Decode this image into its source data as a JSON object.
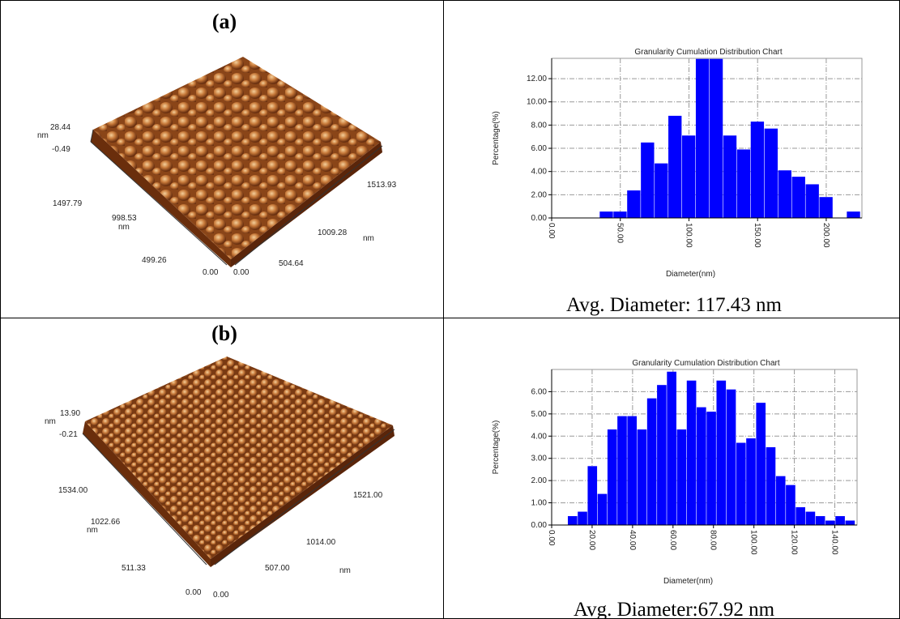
{
  "panels": [
    {
      "label": "(a)",
      "caption": "Avg. Diameter: 117.43 nm",
      "afm": {
        "z_unit": "nm",
        "z_max": "28.44",
        "z_min": "-0.49",
        "y_labels": [
          "1497.79",
          "998.53",
          "499.26",
          "0.00"
        ],
        "y_unit": "nm",
        "x_labels": [
          "1513.93",
          "1009.28",
          "504.64",
          "0.00"
        ],
        "x_unit": "nm"
      }
    },
    {
      "label": "(b)",
      "caption": "Avg. Diameter:67.92 nm",
      "afm": {
        "z_unit": "nm",
        "z_max": "13.90",
        "z_min": "-0.21",
        "y_labels": [
          "1534.00",
          "1022.66",
          "511.33",
          "0.00"
        ],
        "y_unit": "nm",
        "x_labels": [
          "1521.00",
          "1014.00",
          "507.00",
          "0.00"
        ],
        "x_unit": "nm"
      }
    }
  ],
  "chart_data": [
    {
      "type": "histogram",
      "title": "Granularity Cumulation Distribution  Chart",
      "xlabel": "Diameter(nm)",
      "ylabel": "Percentage(%)",
      "color": "#0000ff",
      "grid": true,
      "bins": [
        35,
        45,
        55,
        65,
        75,
        85,
        95,
        105,
        115,
        125,
        135,
        145,
        155,
        165,
        175,
        185,
        195,
        205,
        215,
        225
      ],
      "values": [
        0.55,
        0.55,
        2.37,
        6.5,
        4.7,
        8.8,
        7.1,
        13.7,
        13.7,
        7.1,
        5.9,
        8.3,
        7.7,
        4.1,
        3.55,
        2.9,
        1.8,
        0,
        0.55
      ],
      "xlim": [
        0,
        226
      ],
      "ylim": [
        0,
        13.75
      ],
      "xticks": [
        {
          "value": 0,
          "label": "0.00"
        },
        {
          "value": 50,
          "label": "50.00"
        },
        {
          "value": 100,
          "label": "100.00"
        },
        {
          "value": 150,
          "label": "150.00"
        },
        {
          "value": 200,
          "label": "200.00"
        }
      ],
      "yticks": [
        {
          "value": 0,
          "label": "0.00"
        },
        {
          "value": 2,
          "label": "2.00"
        },
        {
          "value": 4,
          "label": "4.00"
        },
        {
          "value": 6,
          "label": "6.00"
        },
        {
          "value": 8,
          "label": "8.00"
        },
        {
          "value": 10,
          "label": "10.00"
        },
        {
          "value": 12,
          "label": "12.00"
        }
      ]
    },
    {
      "type": "histogram",
      "title": "Granularity Cumulation Distribution  Chart",
      "xlabel": "Diameter(nm)",
      "ylabel": "Percentage(%)",
      "color": "#0000ff",
      "grid": true,
      "bins": [
        8,
        12.9,
        17.8,
        22.7,
        27.6,
        32.5,
        37.4,
        42.3,
        47.2,
        52.1,
        57,
        61.9,
        66.8,
        71.7,
        76.6,
        81.5,
        86.4,
        91.3,
        96.2,
        101.1,
        106,
        110.9,
        115.8,
        120.7,
        125.6,
        130.5,
        135.4,
        140.3,
        145.2,
        150.1
      ],
      "values": [
        0.4,
        0.6,
        2.65,
        1.4,
        4.3,
        4.9,
        4.9,
        4.3,
        5.7,
        6.3,
        6.9,
        4.3,
        6.5,
        5.3,
        5.1,
        6.5,
        6.1,
        3.7,
        3.9,
        5.5,
        3.5,
        2.2,
        1.8,
        0.8,
        0.6,
        0.4,
        0.2,
        0.4,
        0.2
      ],
      "xlim": [
        0,
        151
      ],
      "ylim": [
        0,
        7
      ],
      "xticks": [
        {
          "value": 0,
          "label": "0.00"
        },
        {
          "value": 20,
          "label": "20.00"
        },
        {
          "value": 40,
          "label": "40.00"
        },
        {
          "value": 60,
          "label": "60.00"
        },
        {
          "value": 80,
          "label": "80.00"
        },
        {
          "value": 100,
          "label": "100.00"
        },
        {
          "value": 120,
          "label": "120.00"
        },
        {
          "value": 140,
          "label": "140.00"
        }
      ],
      "yticks": [
        {
          "value": 0,
          "label": "0.00"
        },
        {
          "value": 1,
          "label": "1.00"
        },
        {
          "value": 2,
          "label": "2.00"
        },
        {
          "value": 3,
          "label": "3.00"
        },
        {
          "value": 4,
          "label": "4.00"
        },
        {
          "value": 5,
          "label": "5.00"
        },
        {
          "value": 6,
          "label": "6.00"
        }
      ]
    }
  ]
}
